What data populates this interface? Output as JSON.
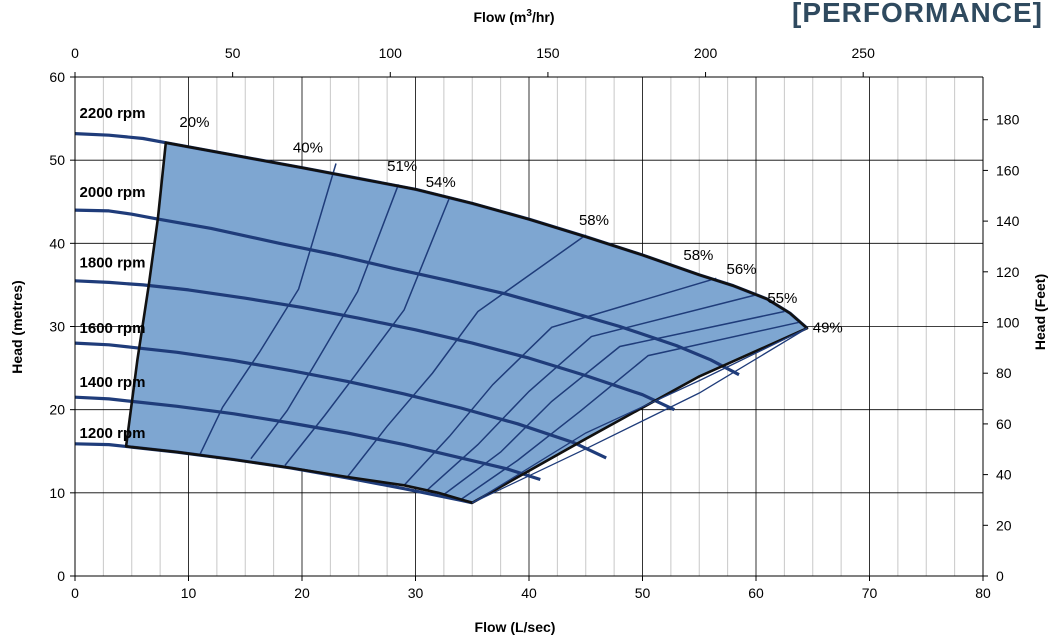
{
  "header": {
    "brand_text": "[PERFORMANCE]",
    "brand_color": "#2f4a5f"
  },
  "chart_data": {
    "type": "line",
    "xlabel": "Flow (L/sec)",
    "ylabel": "Head (metres)",
    "x_top_label_prefix": "Flow (m",
    "x_top_label_sup": "3",
    "x_top_label_suffix": "/hr)",
    "y_right_label": "Head (Feet)",
    "xlim": [
      0,
      80
    ],
    "ylim": [
      0,
      60
    ],
    "x_ticks": [
      "0",
      "10",
      "20",
      "30",
      "40",
      "50",
      "60",
      "70",
      "80"
    ],
    "y_ticks": [
      "0",
      "10",
      "20",
      "30",
      "40",
      "50",
      "60"
    ],
    "x_top_ticks": [
      "0",
      "50",
      "100",
      "150",
      "200",
      "250"
    ],
    "y_right_ticks": [
      "0",
      "20",
      "40",
      "60",
      "80",
      "100",
      "120",
      "140",
      "160",
      "180"
    ],
    "grid": true,
    "region_color": "#7ea6d1",
    "curve_color": "#1f3c7a",
    "speed_curves": [
      {
        "label": "2200 rpm",
        "x": [
          0,
          3,
          6,
          8,
          14,
          20,
          25,
          30,
          35,
          40,
          45,
          50,
          55,
          58,
          61,
          63,
          64.5
        ],
        "y": [
          53.2,
          53.0,
          52.6,
          52.1,
          50.6,
          49.1,
          47.8,
          46.5,
          44.8,
          42.9,
          40.8,
          38.6,
          36.2,
          34.9,
          33.3,
          31.6,
          29.8
        ]
      },
      {
        "label": "2000 rpm",
        "x": [
          0,
          3,
          5,
          7,
          12,
          18,
          23,
          28,
          33,
          38,
          43,
          48,
          53,
          56,
          58.5
        ],
        "y": [
          44.0,
          43.9,
          43.5,
          43.0,
          41.8,
          40.0,
          38.6,
          37.0,
          35.5,
          33.9,
          32.0,
          30.0,
          27.7,
          26.0,
          24.2
        ]
      },
      {
        "label": "1800 rpm",
        "x": [
          0,
          3,
          6,
          10,
          15,
          20,
          25,
          30,
          35,
          40,
          45,
          50,
          52.8
        ],
        "y": [
          35.5,
          35.3,
          35.0,
          34.4,
          33.4,
          32.3,
          31.0,
          29.6,
          28.0,
          26.2,
          24.1,
          21.8,
          20.0
        ]
      },
      {
        "label": "1600 rpm",
        "x": [
          0,
          3,
          5,
          9,
          14,
          19,
          24,
          29,
          34,
          39,
          44,
          46.8
        ],
        "y": [
          28.0,
          27.8,
          27.5,
          26.9,
          25.9,
          24.7,
          23.4,
          21.9,
          20.2,
          18.3,
          16.0,
          14.2
        ]
      },
      {
        "label": "1400 rpm",
        "x": [
          0,
          3,
          5,
          9,
          14,
          19,
          24,
          29,
          34,
          38,
          41
        ],
        "y": [
          21.5,
          21.3,
          21.0,
          20.4,
          19.5,
          18.4,
          17.2,
          15.8,
          14.2,
          12.9,
          11.6
        ]
      },
      {
        "label": "1200 rpm",
        "x": [
          0,
          3,
          5,
          9,
          14,
          19,
          24,
          29,
          34,
          35
        ],
        "y": [
          15.9,
          15.8,
          15.5,
          14.9,
          14.0,
          13.0,
          11.8,
          10.5,
          9.1,
          8.8
        ]
      }
    ],
    "region_boundary": {
      "x": [
        8,
        14,
        20,
        25,
        30,
        35,
        40,
        45,
        50,
        55,
        58,
        61,
        63,
        64.5,
        55,
        45,
        35,
        32,
        29,
        24,
        19,
        14,
        9,
        5,
        4.5,
        5.5,
        6.5,
        7.3,
        8
      ],
      "y": [
        52.1,
        50.6,
        49.1,
        47.8,
        46.5,
        44.8,
        42.9,
        40.8,
        38.6,
        36.2,
        34.9,
        33.3,
        31.6,
        29.8,
        24.0,
        16.5,
        8.8,
        10.0,
        10.9,
        11.9,
        13.0,
        14.0,
        14.9,
        15.5,
        15.6,
        26.0,
        35.0,
        43.0,
        52.1
      ]
    },
    "outer_envelope": {
      "x": [
        35,
        45,
        55,
        64.5
      ],
      "y": [
        8.8,
        15.3,
        22.0,
        29.8
      ]
    },
    "efficiency_lines": [
      {
        "x": [
          11,
          13,
          16.3,
          19.7,
          23
        ],
        "y": [
          14.6,
          20.3,
          27.0,
          34.5,
          49.6
        ]
      },
      {
        "x": [
          15.5,
          18.7,
          21.5,
          24.9,
          28.5
        ],
        "y": [
          14.1,
          19.9,
          26.3,
          34.2,
          47.1
        ]
      },
      {
        "x": [
          18.5,
          22.0,
          25.5,
          29.0,
          33.0
        ],
        "y": [
          13.3,
          19.3,
          25.6,
          32.0,
          45.5
        ]
      },
      {
        "x": [
          24,
          27.5,
          31.5,
          35.5,
          45
        ],
        "y": [
          11.9,
          18.0,
          24.4,
          31.8,
          41.0
        ]
      },
      {
        "x": [
          29,
          33.0,
          36.8,
          42.0,
          56.5
        ],
        "y": [
          10.9,
          16.8,
          23.0,
          29.9,
          35.8
        ]
      },
      {
        "x": [
          31,
          35.5,
          40.0,
          45.5,
          60.0
        ],
        "y": [
          10.3,
          15.8,
          22.2,
          28.8,
          33.8
        ]
      },
      {
        "x": [
          32.5,
          37.5,
          42.0,
          48.0,
          62.5
        ],
        "y": [
          9.8,
          14.9,
          21.0,
          27.6,
          31.8
        ]
      },
      {
        "x": [
          34,
          39.0,
          44.5,
          50.5,
          63.8
        ],
        "y": [
          9.2,
          13.9,
          19.8,
          26.5,
          30.5
        ]
      }
    ],
    "efficiency_labels": [
      {
        "text": "20%",
        "x": 9.2,
        "y": 54.0
      },
      {
        "text": "40%",
        "x": 19.2,
        "y": 50.9
      },
      {
        "text": "51%",
        "x": 27.5,
        "y": 48.7
      },
      {
        "text": "54%",
        "x": 30.9,
        "y": 46.8
      },
      {
        "text": "58%",
        "x": 44.4,
        "y": 42.2
      },
      {
        "text": "58%",
        "x": 53.6,
        "y": 38.0
      },
      {
        "text": "56%",
        "x": 57.4,
        "y": 36.3
      },
      {
        "text": "55%",
        "x": 61.0,
        "y": 32.8
      },
      {
        "text": "49%",
        "x": 65.0,
        "y": 29.3
      }
    ],
    "rpm_label_positions": [
      {
        "x": 0.4,
        "y": 55.1
      },
      {
        "x": 0.4,
        "y": 45.6
      },
      {
        "x": 0.4,
        "y": 37.1
      },
      {
        "x": 0.4,
        "y": 29.2
      },
      {
        "x": 0.4,
        "y": 22.7
      },
      {
        "x": 0.4,
        "y": 16.6
      }
    ]
  }
}
